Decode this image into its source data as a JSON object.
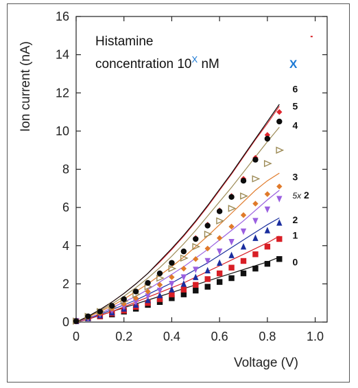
{
  "chart_data": {
    "type": "scatter",
    "xlabel": "Voltage (V)",
    "ylabel": "Ion current (nA)",
    "xlim": [
      0,
      1.05
    ],
    "ylim": [
      0,
      16
    ],
    "x_ticks": [
      "0",
      "0.2",
      "0.4",
      "0.6",
      "0.8",
      "1.0"
    ],
    "y_ticks": [
      "0",
      "2",
      "4",
      "6",
      "8",
      "10",
      "12",
      "14",
      "16"
    ],
    "legend": {
      "line1": "Histamine",
      "line2_prefix": "concentration 10",
      "line2_exp": "X",
      "line2_suffix": " nM",
      "column_header": "X"
    },
    "x": [
      0,
      0.05,
      0.1,
      0.15,
      0.2,
      0.25,
      0.3,
      0.35,
      0.4,
      0.45,
      0.5,
      0.55,
      0.6,
      0.65,
      0.7,
      0.75,
      0.8,
      0.85
    ],
    "series": [
      {
        "label": "0",
        "color": "#111111",
        "marker": "square",
        "points": [
          0.05,
          0.2,
          0.3,
          0.4,
          0.55,
          0.7,
          0.9,
          1.05,
          1.25,
          1.45,
          1.65,
          1.85,
          2.1,
          2.3,
          2.55,
          2.8,
          3.05,
          3.3
        ],
        "fit": [
          0.0,
          0.15,
          0.35,
          0.55,
          0.75,
          0.95,
          1.15,
          1.35,
          1.55,
          1.75,
          1.95,
          2.15,
          2.35,
          2.55,
          2.75,
          2.95,
          3.15,
          3.4
        ]
      },
      {
        "label": "1",
        "color": "#d81f26",
        "marker": "square",
        "points": [
          0.05,
          0.2,
          0.3,
          0.45,
          0.6,
          0.8,
          1.0,
          1.2,
          1.45,
          1.7,
          1.95,
          2.25,
          2.55,
          2.85,
          3.2,
          3.55,
          3.95,
          4.35
        ],
        "fit": [
          0.0,
          0.15,
          0.35,
          0.55,
          0.8,
          1.05,
          1.3,
          1.55,
          1.8,
          2.05,
          2.35,
          2.65,
          2.95,
          3.25,
          3.55,
          3.85,
          4.15,
          4.5
        ]
      },
      {
        "label": "2",
        "color": "#1a2e9e",
        "marker": "triangle",
        "points": [
          0.05,
          0.2,
          0.35,
          0.5,
          0.7,
          0.9,
          1.15,
          1.4,
          1.7,
          2.0,
          2.35,
          2.7,
          3.1,
          3.5,
          3.95,
          4.4,
          4.8,
          5.2
        ],
        "fit": [
          0.0,
          0.2,
          0.4,
          0.65,
          0.9,
          1.15,
          1.45,
          1.75,
          2.05,
          2.4,
          2.75,
          3.1,
          3.5,
          3.9,
          4.3,
          4.7,
          5.1,
          5.45
        ]
      },
      {
        "label": "5x 2",
        "color": "#9a5fe0",
        "marker": "triangle-down",
        "points": [
          0.05,
          0.2,
          0.4,
          0.6,
          0.8,
          1.05,
          1.35,
          1.65,
          2.0,
          2.35,
          2.75,
          3.2,
          3.7,
          4.2,
          4.75,
          5.3,
          5.9,
          6.45
        ],
        "fit": [
          0.0,
          0.2,
          0.45,
          0.75,
          1.05,
          1.35,
          1.7,
          2.1,
          2.5,
          2.9,
          3.35,
          3.8,
          4.3,
          4.8,
          5.3,
          5.85,
          6.4,
          6.9
        ]
      },
      {
        "label": "3",
        "color": "#e07a2a",
        "marker": "diamond",
        "points": [
          0.05,
          0.25,
          0.45,
          0.7,
          0.95,
          1.25,
          1.6,
          1.95,
          2.35,
          2.8,
          3.3,
          3.85,
          4.4,
          5.0,
          5.6,
          6.2,
          6.7,
          7.1
        ],
        "fit": [
          0.0,
          0.25,
          0.55,
          0.85,
          1.2,
          1.6,
          2.0,
          2.45,
          2.9,
          3.4,
          3.95,
          4.5,
          5.1,
          5.7,
          6.3,
          6.9,
          7.4,
          7.8
        ]
      },
      {
        "label": "4",
        "color": "#9c8a55",
        "marker": "triangle-right-open",
        "points": [
          0.05,
          0.3,
          0.55,
          0.8,
          1.1,
          1.45,
          1.85,
          2.3,
          2.8,
          3.35,
          3.95,
          4.6,
          5.3,
          5.95,
          6.6,
          7.5,
          8.3,
          9.0
        ],
        "fit": [
          0.0,
          0.3,
          0.6,
          0.95,
          1.35,
          1.8,
          2.3,
          2.85,
          3.45,
          4.1,
          4.8,
          5.55,
          6.3,
          7.05,
          7.85,
          8.65,
          9.45,
          10.2
        ]
      },
      {
        "label": "5",
        "color": "#e0262e",
        "marker": "diamond",
        "points": [
          0.05,
          0.3,
          0.55,
          0.85,
          1.2,
          1.6,
          2.05,
          2.55,
          3.1,
          3.7,
          4.4,
          5.1,
          5.85,
          6.6,
          7.5,
          8.6,
          9.8,
          11.0
        ],
        "fit": [
          0.0,
          0.3,
          0.65,
          1.05,
          1.5,
          2.0,
          2.55,
          3.15,
          3.8,
          4.5,
          5.25,
          6.05,
          6.9,
          7.75,
          8.65,
          9.55,
          10.4,
          11.3
        ]
      },
      {
        "label": "6",
        "color": "#0c0c0c",
        "marker": "hexagon",
        "points": [
          0.05,
          0.3,
          0.55,
          0.85,
          1.2,
          1.6,
          2.05,
          2.55,
          3.1,
          3.7,
          4.35,
          5.05,
          5.8,
          6.55,
          7.4,
          8.5,
          9.6,
          10.5
        ],
        "fit": [
          0.0,
          0.3,
          0.65,
          1.05,
          1.5,
          2.0,
          2.55,
          3.2,
          3.85,
          4.55,
          5.3,
          6.1,
          6.95,
          7.8,
          8.7,
          9.6,
          10.5,
          11.4
        ]
      }
    ]
  }
}
